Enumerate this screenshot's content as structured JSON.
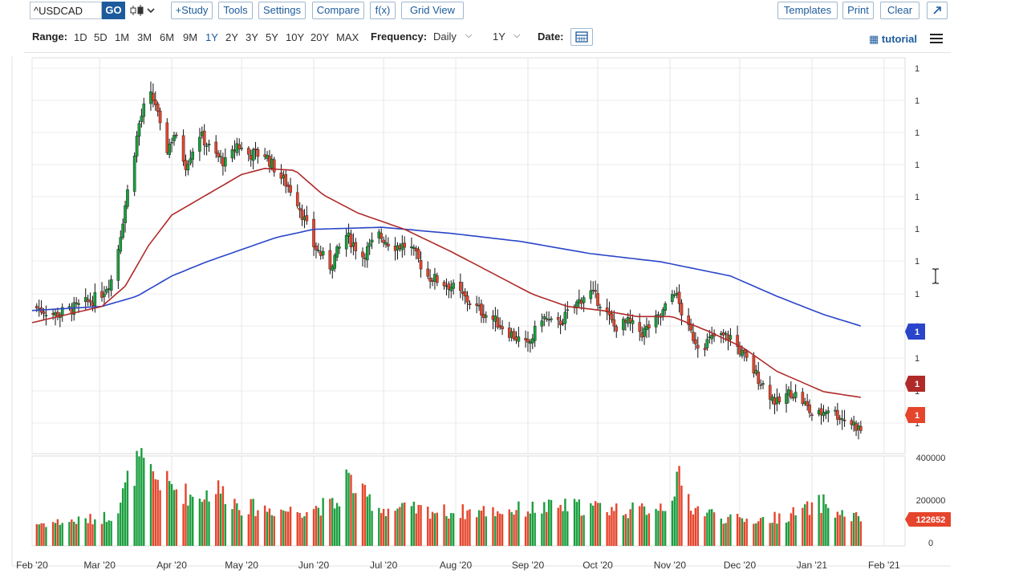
{
  "toolbar": {
    "symbol_value": "^USDCAD",
    "go_label": "GO",
    "chart_type_icon": "candlestick-icon",
    "study_label": "+Study",
    "tools_label": "Tools",
    "settings_label": "Settings",
    "compare_label": "Compare",
    "fx_label": "f(x)",
    "gridview_label": "Grid View",
    "templates_label": "Templates",
    "print_label": "Print",
    "clear_label": "Clear",
    "popout_icon": "popout-icon"
  },
  "rangebar": {
    "range_label": "Range:",
    "ranges": [
      "1D",
      "5D",
      "1M",
      "3M",
      "6M",
      "9M",
      "1Y",
      "2Y",
      "3Y",
      "5Y",
      "10Y",
      "20Y",
      "MAX"
    ],
    "active_range": "1Y",
    "frequency_label": "Frequency:",
    "frequency_value": "Daily",
    "period_value": "1Y",
    "date_label": "Date:",
    "tutorial_label": "tutorial"
  },
  "colors": {
    "up": "#1b9e3e",
    "down": "#e5452c",
    "ma_long": "#2a45c9",
    "ma_short": "#b02a2a",
    "accent": "#1d5b9c"
  },
  "chart_data": {
    "type": "candlestick",
    "title": "",
    "price_axis_labels": [
      "1",
      "1",
      "1",
      "1",
      "1",
      "1",
      "1",
      "1",
      "1",
      "1",
      "1",
      "1"
    ],
    "price_markers": [
      {
        "label": "1",
        "color": "#2a45c9"
      },
      {
        "label": "1",
        "color": "#b02a2a"
      },
      {
        "label": "1",
        "color": "#e5452c"
      }
    ],
    "x_labels": [
      "Feb '20",
      "Mar '20",
      "Apr '20",
      "May '20",
      "Jun '20",
      "Jul '20",
      "Aug '20",
      "Sep '20",
      "Oct '20",
      "Nov '20",
      "Dec '20",
      "Jan '21",
      "Feb '21"
    ],
    "x_days": [
      0,
      29,
      60,
      90,
      121,
      151,
      182,
      213,
      243,
      274,
      304,
      335,
      366
    ],
    "close_keypoints": [
      [
        0,
        1.33
      ],
      [
        10,
        1.326
      ],
      [
        20,
        1.33
      ],
      [
        29,
        1.335
      ],
      [
        35,
        1.345
      ],
      [
        40,
        1.38
      ],
      [
        46,
        1.42
      ],
      [
        50,
        1.435
      ],
      [
        53,
        1.43
      ],
      [
        57,
        1.405
      ],
      [
        61,
        1.415
      ],
      [
        66,
        1.4
      ],
      [
        72,
        1.415
      ],
      [
        78,
        1.405
      ],
      [
        84,
        1.4
      ],
      [
        88,
        1.41
      ],
      [
        92,
        1.405
      ],
      [
        100,
        1.405
      ],
      [
        106,
        1.395
      ],
      [
        113,
        1.385
      ],
      [
        121,
        1.36
      ],
      [
        128,
        1.35
      ],
      [
        135,
        1.365
      ],
      [
        142,
        1.355
      ],
      [
        149,
        1.365
      ],
      [
        155,
        1.36
      ],
      [
        162,
        1.36
      ],
      [
        170,
        1.345
      ],
      [
        180,
        1.34
      ],
      [
        190,
        1.33
      ],
      [
        200,
        1.322
      ],
      [
        213,
        1.31
      ],
      [
        219,
        1.325
      ],
      [
        225,
        1.32
      ],
      [
        233,
        1.33
      ],
      [
        239,
        1.338
      ],
      [
        244,
        1.332
      ],
      [
        250,
        1.32
      ],
      [
        256,
        1.322
      ],
      [
        262,
        1.317
      ],
      [
        270,
        1.325
      ],
      [
        276,
        1.338
      ],
      [
        281,
        1.32
      ],
      [
        287,
        1.31
      ],
      [
        293,
        1.315
      ],
      [
        300,
        1.315
      ],
      [
        306,
        1.305
      ],
      [
        313,
        1.293
      ],
      [
        320,
        1.282
      ],
      [
        326,
        1.288
      ],
      [
        330,
        1.285
      ],
      [
        336,
        1.275
      ],
      [
        342,
        1.28
      ],
      [
        348,
        1.275
      ],
      [
        353,
        1.272
      ],
      [
        357,
        1.268
      ]
    ],
    "ma50_keypoints": [
      [
        0,
        1.322
      ],
      [
        15,
        1.326
      ],
      [
        30,
        1.33
      ],
      [
        40,
        1.34
      ],
      [
        50,
        1.36
      ],
      [
        60,
        1.375
      ],
      [
        75,
        1.385
      ],
      [
        90,
        1.395
      ],
      [
        100,
        1.398
      ],
      [
        113,
        1.397
      ],
      [
        125,
        1.385
      ],
      [
        140,
        1.376
      ],
      [
        160,
        1.368
      ],
      [
        180,
        1.357
      ],
      [
        200,
        1.345
      ],
      [
        215,
        1.336
      ],
      [
        230,
        1.33
      ],
      [
        245,
        1.328
      ],
      [
        260,
        1.325
      ],
      [
        275,
        1.325
      ],
      [
        290,
        1.318
      ],
      [
        305,
        1.31
      ],
      [
        320,
        1.298
      ],
      [
        340,
        1.288
      ],
      [
        357,
        1.285
      ]
    ],
    "ma200_keypoints": [
      [
        0,
        1.328
      ],
      [
        30,
        1.33
      ],
      [
        45,
        1.335
      ],
      [
        60,
        1.345
      ],
      [
        75,
        1.352
      ],
      [
        90,
        1.358
      ],
      [
        105,
        1.364
      ],
      [
        121,
        1.368
      ],
      [
        150,
        1.369
      ],
      [
        180,
        1.366
      ],
      [
        210,
        1.362
      ],
      [
        240,
        1.356
      ],
      [
        270,
        1.352
      ],
      [
        300,
        1.345
      ],
      [
        320,
        1.335
      ],
      [
        340,
        1.326
      ],
      [
        357,
        1.32
      ]
    ],
    "volume": {
      "axis_labels": [
        "400000",
        "200000",
        "0"
      ],
      "ylim": [
        0,
        400000
      ],
      "last_value_label": "122652",
      "keypoints": [
        [
          0,
          100000
        ],
        [
          20,
          115000
        ],
        [
          29,
          125000
        ],
        [
          36,
          150000
        ],
        [
          42,
          320000
        ],
        [
          46,
          380000
        ],
        [
          50,
          330000
        ],
        [
          55,
          300000
        ],
        [
          60,
          270000
        ],
        [
          70,
          220000
        ],
        [
          80,
          260000
        ],
        [
          90,
          180000
        ],
        [
          100,
          170000
        ],
        [
          113,
          160000
        ],
        [
          121,
          175000
        ],
        [
          131,
          190000
        ],
        [
          135,
          320000
        ],
        [
          139,
          260000
        ],
        [
          150,
          170000
        ],
        [
          165,
          165000
        ],
        [
          180,
          155000
        ],
        [
          200,
          160000
        ],
        [
          215,
          170000
        ],
        [
          230,
          180000
        ],
        [
          245,
          175000
        ],
        [
          260,
          160000
        ],
        [
          272,
          190000
        ],
        [
          278,
          300000
        ],
        [
          284,
          175000
        ],
        [
          300,
          120000
        ],
        [
          315,
          120000
        ],
        [
          325,
          140000
        ],
        [
          335,
          175000
        ],
        [
          340,
          200000
        ],
        [
          345,
          150000
        ],
        [
          357,
          122652
        ]
      ]
    },
    "date_range": [
      "2020-01-31",
      "2021-01-22"
    ]
  }
}
